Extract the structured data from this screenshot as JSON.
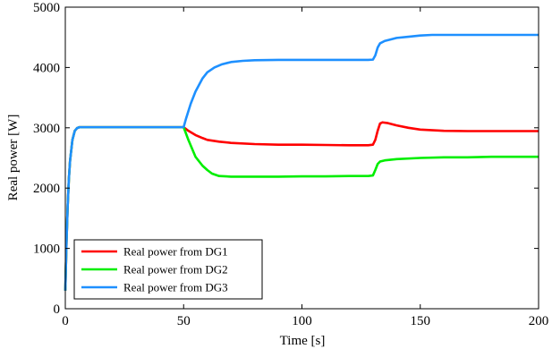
{
  "chart_data": {
    "type": "line",
    "title": "",
    "xlabel": "Time [s]",
    "ylabel": "Real power [W]",
    "xlim": [
      0,
      200
    ],
    "ylim": [
      0,
      5000
    ],
    "xticks": [
      0,
      50,
      100,
      150,
      200
    ],
    "yticks": [
      0,
      1000,
      2000,
      3000,
      4000,
      5000
    ],
    "grid": false,
    "legend_position": "bottom-left",
    "series": [
      {
        "name": "Real power from DG1",
        "color": "#ff0000",
        "x": [
          0,
          0.5,
          1,
          1.5,
          2,
          3,
          4,
          5,
          6,
          8,
          10,
          20,
          30,
          40,
          50,
          52,
          55,
          58,
          60,
          65,
          70,
          80,
          90,
          100,
          110,
          120,
          128,
          130,
          131,
          132,
          133,
          134,
          136,
          138,
          140,
          145,
          150,
          160,
          170,
          180,
          190,
          200
        ],
        "y": [
          300,
          1100,
          1700,
          2150,
          2450,
          2800,
          2950,
          2995,
          3010,
          3010,
          3010,
          3010,
          3010,
          3010,
          3010,
          2950,
          2880,
          2830,
          2800,
          2770,
          2750,
          2730,
          2720,
          2720,
          2715,
          2710,
          2710,
          2720,
          2800,
          2950,
          3070,
          3090,
          3080,
          3060,
          3040,
          3000,
          2970,
          2950,
          2945,
          2945,
          2945,
          2945
        ]
      },
      {
        "name": "Real power from DG2",
        "color": "#00ee00",
        "x": [
          0,
          0.5,
          1,
          1.5,
          2,
          3,
          4,
          5,
          6,
          8,
          10,
          20,
          30,
          40,
          50,
          52,
          55,
          58,
          60,
          62,
          65,
          70,
          80,
          90,
          100,
          110,
          120,
          128,
          130,
          131,
          132,
          133,
          135,
          140,
          150,
          160,
          170,
          180,
          190,
          200
        ],
        "y": [
          300,
          1100,
          1700,
          2150,
          2450,
          2800,
          2950,
          2995,
          3010,
          3010,
          3010,
          3010,
          3010,
          3010,
          3010,
          2800,
          2520,
          2370,
          2300,
          2240,
          2200,
          2190,
          2190,
          2190,
          2195,
          2195,
          2200,
          2200,
          2210,
          2300,
          2400,
          2440,
          2460,
          2480,
          2500,
          2510,
          2510,
          2520,
          2520,
          2520
        ]
      },
      {
        "name": "Real power from DG3",
        "color": "#1e90ff",
        "x": [
          0,
          0.5,
          1,
          1.5,
          2,
          3,
          4,
          5,
          6,
          8,
          10,
          20,
          30,
          40,
          50,
          51,
          53,
          55,
          58,
          60,
          63,
          66,
          70,
          75,
          80,
          90,
          100,
          110,
          120,
          128,
          130,
          131,
          132,
          133,
          135,
          138,
          140,
          145,
          150,
          155,
          160,
          170,
          180,
          190,
          200
        ],
        "y": [
          300,
          1100,
          1700,
          2150,
          2450,
          2800,
          2950,
          2995,
          3010,
          3010,
          3010,
          3010,
          3010,
          3010,
          3010,
          3150,
          3400,
          3600,
          3820,
          3920,
          4000,
          4050,
          4090,
          4110,
          4120,
          4125,
          4125,
          4125,
          4125,
          4125,
          4130,
          4200,
          4330,
          4400,
          4440,
          4470,
          4490,
          4510,
          4530,
          4540,
          4540,
          4540,
          4540,
          4540,
          4540
        ]
      }
    ]
  }
}
